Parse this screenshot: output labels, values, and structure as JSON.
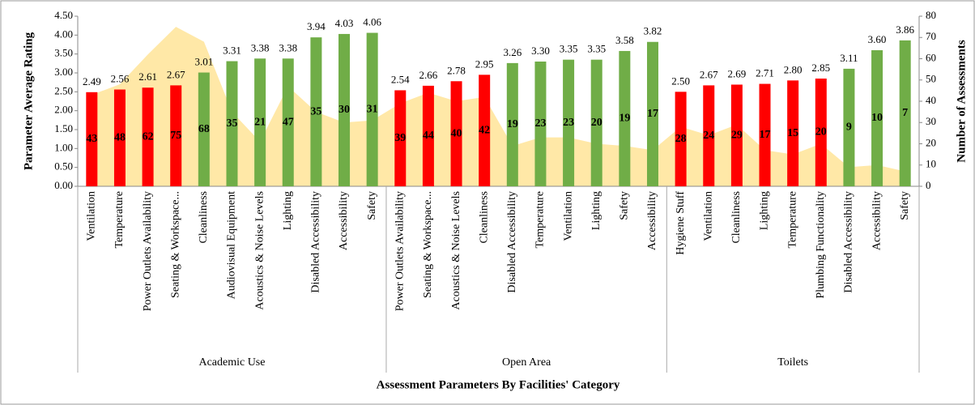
{
  "chart_data": {
    "type": "bar",
    "xlabel": "Assessment Parameters By Facilities' Category",
    "ylabel": "Parameter Average Rating",
    "y2label": "Number of Assessments",
    "ylim": [
      0,
      4.5
    ],
    "yticks": [
      {
        "value": 0,
        "label": "0.00"
      },
      {
        "value": 0.5,
        "label": "0.50"
      },
      {
        "value": 1,
        "label": "1.00"
      },
      {
        "value": 1.5,
        "label": "1.50"
      },
      {
        "value": 2,
        "label": "2.00"
      },
      {
        "value": 2.5,
        "label": "2.50"
      },
      {
        "value": 3,
        "label": "3.00"
      },
      {
        "value": 3.5,
        "label": "3.50"
      },
      {
        "value": 4,
        "label": "4.00"
      },
      {
        "value": 4.5,
        "label": "4.50"
      }
    ],
    "y2lim": [
      0,
      80
    ],
    "y2ticks": [
      0,
      10,
      20,
      30,
      40,
      50,
      60,
      70,
      80
    ],
    "area_color": "#ffe08a",
    "groups": [
      {
        "name": "Academic Use",
        "categories": [
          "Ventilation",
          "Temperature",
          "Power Outlets Availability",
          "Seating & Workspace...",
          "Cleanliness",
          "Audiovisual Equipment",
          "Acoustics & Noise Levels",
          "Lighting",
          "Disabled Accessibility",
          "Accessibility",
          "Safety"
        ],
        "ratings": [
          2.49,
          2.56,
          2.61,
          2.67,
          3.01,
          3.31,
          3.38,
          3.38,
          3.94,
          4.03,
          4.06
        ],
        "rating_labels": [
          "2.49",
          "2.56",
          "2.61",
          "2.67",
          "3.01",
          "3.31",
          "3.38",
          "3.38",
          "3.94",
          "4.03",
          "4.06"
        ],
        "bar_colors": [
          "#ff0000",
          "#ff0000",
          "#ff0000",
          "#ff0000",
          "#70ad47",
          "#70ad47",
          "#70ad47",
          "#70ad47",
          "#70ad47",
          "#70ad47",
          "#70ad47"
        ],
        "counts": [
          43,
          48,
          62,
          75,
          68,
          35,
          21,
          47,
          35,
          30,
          31
        ]
      },
      {
        "name": "Open Area",
        "categories": [
          "Power Outlets Availability",
          "Seating & Workspace...",
          "Acoustics & Noise Levels",
          "Cleanliness",
          "Disabled Accessibility",
          "Temperature",
          "Ventilation",
          "Lighting",
          "Safety",
          "Accessibility"
        ],
        "ratings": [
          2.54,
          2.66,
          2.78,
          2.95,
          3.26,
          3.3,
          3.35,
          3.35,
          3.58,
          3.82
        ],
        "rating_labels": [
          "2.54",
          "2.66",
          "2.78",
          "2.95",
          "3.26",
          "3.30",
          "3.35",
          "3.35",
          "3.58",
          "3.82"
        ],
        "bar_colors": [
          "#ff0000",
          "#ff0000",
          "#ff0000",
          "#ff0000",
          "#70ad47",
          "#70ad47",
          "#70ad47",
          "#70ad47",
          "#70ad47",
          "#70ad47"
        ],
        "counts": [
          39,
          44,
          40,
          42,
          19,
          23,
          23,
          20,
          19,
          17
        ]
      },
      {
        "name": "Toilets",
        "categories": [
          "Hygiene Stuff",
          "Ventilation",
          "Cleanliness",
          "Lighting",
          "Temperature",
          "Plumbing Functionality",
          "Disabled Accessibility",
          "Accessibility",
          "Safety"
        ],
        "ratings": [
          2.5,
          2.67,
          2.69,
          2.71,
          2.8,
          2.85,
          3.11,
          3.6,
          3.86
        ],
        "rating_labels": [
          "2.50",
          "2.67",
          "2.69",
          "2.71",
          "2.80",
          "2.85",
          "3.11",
          "3.60",
          "3.86"
        ],
        "bar_colors": [
          "#ff0000",
          "#ff0000",
          "#ff0000",
          "#ff0000",
          "#ff0000",
          "#ff0000",
          "#70ad47",
          "#70ad47",
          "#70ad47"
        ],
        "counts": [
          28,
          24,
          29,
          17,
          15,
          20,
          9,
          10,
          7
        ]
      }
    ]
  }
}
